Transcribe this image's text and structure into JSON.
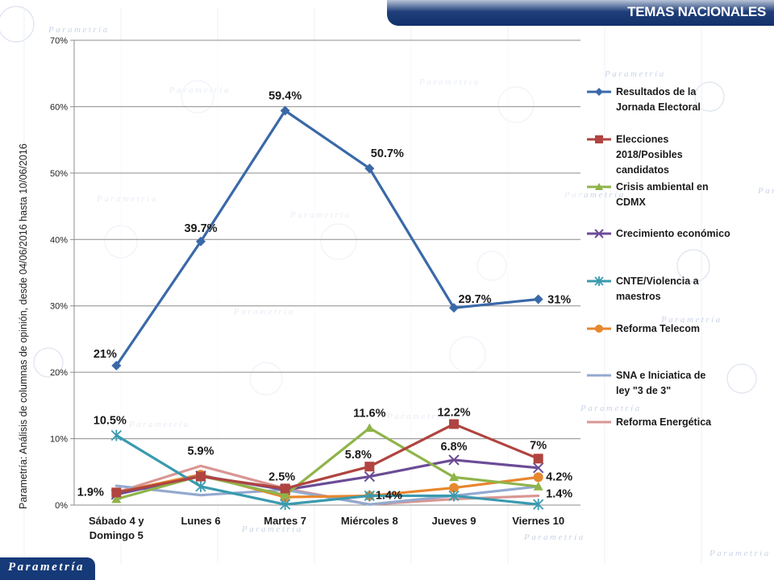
{
  "header": {
    "title": "TEMAS NACIONALES"
  },
  "source_note": "Parametría: Análisis de columnas de opinión, desde 04/06/2016 hasta  10/06/2016",
  "brand": {
    "logo_text": "Parametría",
    "watermark_text": "Parametría"
  },
  "chart_data": {
    "type": "line",
    "categories": [
      "Sábado 4 y Domingo 5",
      "Lunes 6",
      "Martes 7",
      "Miércoles 8",
      "Jueves 9",
      "Viernes 10"
    ],
    "y_ticks": [
      "0%",
      "10%",
      "20%",
      "30%",
      "40%",
      "50%",
      "60%",
      "70%"
    ],
    "ylim": [
      0,
      70
    ],
    "grid": true,
    "legend_position": "right",
    "series": [
      {
        "name": "Resultados de la Jornada Electoral",
        "color": "#3a69a8",
        "marker": "diamond",
        "values": [
          21,
          39.7,
          59.4,
          50.7,
          29.7,
          31
        ]
      },
      {
        "name": "Elecciones 2018/Posibles candidatos",
        "color": "#b04440",
        "marker": "square",
        "values": [
          1.9,
          4.3,
          2.5,
          5.8,
          12.2,
          7
        ]
      },
      {
        "name": "Crisis ambiental en CDMX",
        "color": "#8fb44a",
        "marker": "triangle",
        "values": [
          0.9,
          4.4,
          1.5,
          11.6,
          4.2,
          2.8
        ]
      },
      {
        "name": "Crecimiento económico",
        "color": "#6b4c96",
        "marker": "x",
        "values": [
          1.6,
          4.4,
          2.3,
          4.3,
          6.8,
          5.6
        ]
      },
      {
        "name": "CNTE/Violencia a maestros",
        "color": "#3a9aae",
        "marker": "star",
        "values": [
          10.5,
          2.8,
          0.1,
          1.4,
          1.4,
          0.1
        ]
      },
      {
        "name": "Reforma Telecom",
        "color": "#e7872e",
        "marker": "circle",
        "values": [
          1.9,
          4.6,
          1.2,
          1.4,
          2.6,
          4.2
        ]
      },
      {
        "name": "SNA e Iniciatica de ley \"3 de 3\"",
        "color": "#93a9cf",
        "marker": "none",
        "values": [
          2.9,
          1.5,
          2.3,
          0.1,
          1.4,
          2.8
        ]
      },
      {
        "name": "Reforma Energética",
        "color": "#d99694",
        "marker": "none",
        "values": [
          1.9,
          5.9,
          2.5,
          0.1,
          0.9,
          1.4
        ]
      }
    ],
    "data_labels": [
      {
        "text": "21%",
        "category": 0,
        "value": 21
      },
      {
        "text": "39.7%",
        "category": 1,
        "value": 39.7
      },
      {
        "text": "59.4%",
        "category": 2,
        "value": 59.4
      },
      {
        "text": "50.7%",
        "category": 3,
        "value": 50.7
      },
      {
        "text": "29.7%",
        "category": 4,
        "value": 29.7
      },
      {
        "text": "31%",
        "category": 5,
        "value": 31
      },
      {
        "text": "10.5%",
        "category": 0,
        "value": 10.5
      },
      {
        "text": "1.9%",
        "category": 0,
        "value": 1.9
      },
      {
        "text": "5.9%",
        "category": 1,
        "value": 5.9
      },
      {
        "text": "2.5%",
        "category": 2,
        "value": 2.5
      },
      {
        "text": "11.6%",
        "category": 3,
        "value": 11.6
      },
      {
        "text": "5.8%",
        "category": 3,
        "value": 5.8
      },
      {
        "text": "1.4%",
        "category": 3,
        "value": 1.4
      },
      {
        "text": "12.2%",
        "category": 4,
        "value": 12.2
      },
      {
        "text": "6.8%",
        "category": 4,
        "value": 6.8
      },
      {
        "text": "7%",
        "category": 5,
        "value": 7
      },
      {
        "text": "4.2%",
        "category": 5,
        "value": 4.2
      },
      {
        "text": "1.4%",
        "category": 5,
        "value": 1.4
      }
    ]
  }
}
